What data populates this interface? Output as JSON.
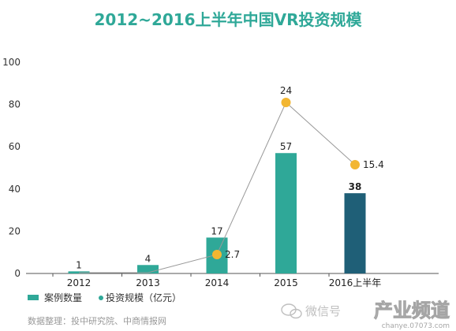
{
  "chart_data": {
    "type": "bar",
    "title": "2012~2016上半年中国VR投资规模",
    "categories": [
      "2012",
      "2013",
      "2014",
      "2015",
      "2016上半年"
    ],
    "series": [
      {
        "name": "案例数量",
        "type": "bar",
        "values": [
          1,
          4,
          17,
          57,
          38
        ],
        "colors": [
          "#2fa898",
          "#2fa898",
          "#2fa898",
          "#2fa898",
          "#1f5f77"
        ]
      },
      {
        "name": "投资规模（亿元）",
        "type": "line",
        "values": [
          null,
          null,
          2.7,
          24,
          15.4
        ],
        "color": "#f2b632"
      }
    ],
    "bar_labels": [
      "1",
      "4",
      "17",
      "57",
      "38"
    ],
    "line_labels": [
      "",
      "",
      "2.7",
      "24",
      "15.4"
    ],
    "ylim": [
      0,
      100
    ],
    "yticks": [
      "0",
      "20",
      "40",
      "60",
      "80",
      "100"
    ],
    "grid": false,
    "legend_placement": "bottom-left",
    "colors": {
      "title": "#2fa898",
      "bar": "#2fa898",
      "bar_highlight": "#1f5f77",
      "dot": "#f2b632",
      "line": "#999999"
    }
  },
  "legend": {
    "bar_label": "案例数量",
    "dot_label": "投资规模（亿元）"
  },
  "source_note": "数据整理：投中研究院、中商情报网",
  "watermark": {
    "wechat": "微信号",
    "brand": "产业频道",
    "site": "chanye.07073.com"
  }
}
